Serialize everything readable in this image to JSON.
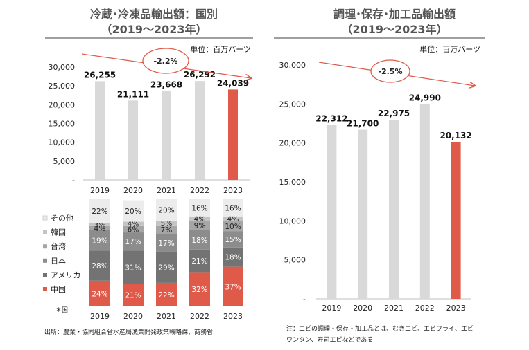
{
  "left": {
    "title_line1": "冷蔵･冷凍品輸出額：国別",
    "title_line2": "（2019～2023年）",
    "unit": "単位：百万バーツ",
    "trend_label": "-2.2%",
    "source": "出所：農業・協同組合省水産局漁業開発政策戦略課、商務省",
    "country_note": "＊国",
    "colors": {
      "highlight": "#e05a4a",
      "bar": "#d9d9d9"
    }
  },
  "right": {
    "title_line1": "調理･保存･加工品輸出額",
    "title_line2": "（2019～2023年）",
    "unit": "単位：百万バーツ",
    "trend_label": "-2.5%",
    "note_line1": "注：エビの調理・保存・加工品とは、むきエビ、エビフライ、エビ",
    "note_line2": "ワンタン、寿司エビなどである"
  },
  "chart_data": [
    {
      "type": "bar",
      "title": "冷蔵･冷凍品輸出額：国別（2019～2023年）",
      "categories": [
        "2019",
        "2020",
        "2021",
        "2022",
        "2023"
      ],
      "values": [
        26255,
        21111,
        23668,
        26292,
        24039
      ],
      "value_labels": [
        "26,255",
        "21,111",
        "23,668",
        "26,292",
        "24,039"
      ],
      "ylim": [
        0,
        30000
      ],
      "yticks": [
        0,
        5000,
        10000,
        15000,
        20000,
        25000,
        30000
      ],
      "ytick_labels": [
        "-",
        "5,000",
        "10,000",
        "15,000",
        "20,000",
        "25,000",
        "30,000"
      ],
      "highlight_index": 4
    },
    {
      "type": "bar",
      "subtype": "stacked-100",
      "categories": [
        "2019",
        "2020",
        "2021",
        "2022",
        "2023"
      ],
      "series": [
        {
          "name": "中国",
          "color": "#e05a4a",
          "values": [
            24,
            21,
            22,
            32,
            37
          ],
          "labels": [
            "24%",
            "21%",
            "22%",
            "32%",
            "37%"
          ]
        },
        {
          "name": "アメリカ",
          "color": "#737373",
          "values": [
            28,
            31,
            29,
            21,
            18
          ],
          "labels": [
            "28%",
            "31%",
            "29%",
            "21%",
            "18%"
          ]
        },
        {
          "name": "日本",
          "color": "#8c8c8c",
          "values": [
            19,
            17,
            17,
            18,
            15
          ],
          "labels": [
            "19%",
            "17%",
            "17%",
            "18%",
            "15%"
          ]
        },
        {
          "name": "台湾",
          "color": "#a6a6a6",
          "values": [
            4,
            6,
            7,
            9,
            10
          ],
          "labels": [
            "4%",
            "6%",
            "7%",
            "9%",
            "10%"
          ]
        },
        {
          "name": "韓国",
          "color": "#c4c4c4",
          "values": [
            3,
            4,
            5,
            4,
            4
          ],
          "labels": [
            "3%",
            "4%",
            "5%",
            "4%",
            "4%"
          ]
        },
        {
          "name": "その他",
          "color": "#ececec",
          "values": [
            22,
            20,
            20,
            16,
            16
          ],
          "labels": [
            "22%",
            "20%",
            "20%",
            "16%",
            "16%"
          ]
        }
      ],
      "legend_position": "left"
    },
    {
      "type": "bar",
      "title": "調理･保存･加工品輸出額（2019～2023年）",
      "categories": [
        "2019",
        "2020",
        "2021",
        "2022",
        "2023"
      ],
      "values": [
        22312,
        21700,
        22975,
        24990,
        20132
      ],
      "value_labels": [
        "22,312",
        "21,700",
        "22,975",
        "24,990",
        "20,132"
      ],
      "ylim": [
        0,
        30000
      ],
      "yticks": [
        0,
        5000,
        10000,
        15000,
        20000,
        25000,
        30000
      ],
      "ytick_labels": [
        "-",
        "5,000",
        "10,000",
        "15,000",
        "20,000",
        "25,000",
        "30,000"
      ],
      "highlight_index": 4
    }
  ]
}
